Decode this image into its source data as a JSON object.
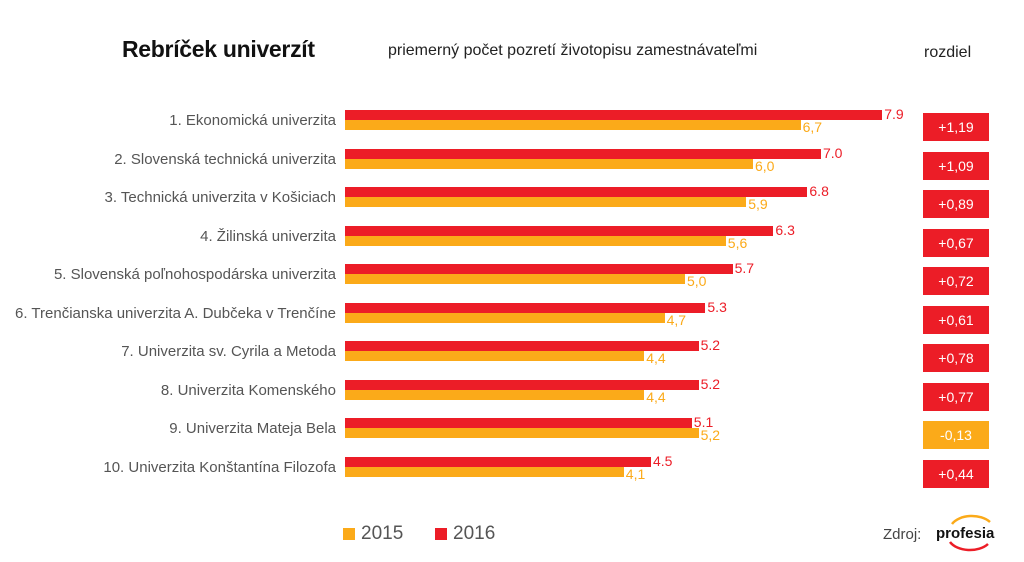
{
  "header": {
    "title": "Rebríček univerzít",
    "subtitle": "priemerný počet pozretí životopisu zamestnávateľmi",
    "diff_header": "rozdiel"
  },
  "colors": {
    "series_2015": "#fbaa19",
    "series_2016": "#ec1d27",
    "badge_positive": "#ec1d27",
    "badge_negative": "#fbaa19"
  },
  "chart_data": {
    "type": "bar",
    "orientation": "horizontal",
    "title": "Rebríček univerzít",
    "subtitle": "priemerný počet pozretí životopisu zamestnávateľmi",
    "xlabel": "",
    "ylabel": "",
    "xlim": [
      0,
      7.9
    ],
    "grid": false,
    "legend_position": "bottom-left",
    "categories": [
      "1.  Ekonomická univerzita",
      "2. Slovenská technická univerzita",
      "3.  Technická univerzita v Košiciach",
      "4.  Žilinská univerzita",
      "5. Slovenská poľnohospodárska univerzita",
      "6.  Trenčianska univerzita A. Dubčeka v Trenčíne",
      "7. Univerzita sv. Cyrila a Metoda",
      "8. Univerzita Komenského",
      "9. Univerzita Mateja Bela",
      "10.  Univerzita Konštantína Filozofa"
    ],
    "series": [
      {
        "name": "2016",
        "values": [
          7.9,
          7.0,
          6.8,
          6.3,
          5.7,
          5.3,
          5.2,
          5.2,
          5.1,
          4.5
        ],
        "labels": [
          "7.9",
          "7.0",
          "6.8",
          "6.3",
          "5.7",
          "5.3",
          "5.2",
          "5.2",
          "5.1",
          "4.5"
        ]
      },
      {
        "name": "2015",
        "values": [
          6.7,
          6.0,
          5.9,
          5.6,
          5.0,
          4.7,
          4.4,
          4.4,
          5.2,
          4.1
        ],
        "labels": [
          "6,7",
          "6,0",
          "5,9",
          "5,6",
          "5,0",
          "4,7",
          "4,4",
          "4,4",
          "5,2",
          "4,1"
        ]
      }
    ],
    "differences": [
      "+1,19",
      "+1,09",
      "+0,89",
      "+0,67",
      "+0,72",
      "+0,61",
      "+0,78",
      "+0,77",
      "-0,13",
      "+0,44"
    ],
    "legend": [
      "2015",
      "2016"
    ]
  },
  "legend": {
    "item_2015": "2015",
    "item_2016": "2016"
  },
  "footer": {
    "source_label": "Zdroj:",
    "logo_text": "profesia"
  }
}
